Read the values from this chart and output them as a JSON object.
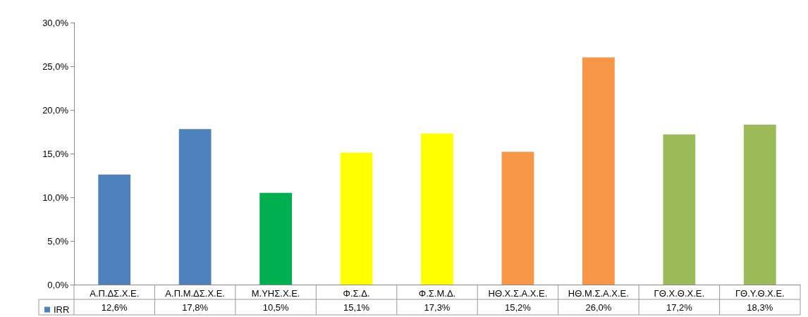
{
  "chart_data": {
    "type": "bar",
    "categories": [
      "Α.Π.ΔΣ.Χ.Ε.",
      "Α.Π.Μ.ΔΣ.Χ.Ε.",
      "Μ.ΥΗΣ.Χ.Ε.",
      "Φ.Σ.Δ.",
      "Φ.Σ.Μ.Δ.",
      "ΗΘ.Χ.Σ.Α.Χ.Ε.",
      "ΗΘ.Μ.Σ.Α.Χ.Ε.",
      "ΓΘ.Χ.Θ.Χ.Ε.",
      "ΓΘ.Υ.Θ.Χ.Ε."
    ],
    "series": [
      {
        "name": "IRR",
        "color": "#4f81bd",
        "values": [
          12.6,
          17.8,
          10.5,
          15.1,
          17.3,
          15.2,
          26.0,
          17.2,
          18.3
        ],
        "colors": [
          "#4f81bd",
          "#4f81bd",
          "#00b050",
          "#ffff00",
          "#ffff00",
          "#f79646",
          "#f79646",
          "#9bbb59",
          "#9bbb59"
        ],
        "value_labels": [
          "12,6%",
          "17,8%",
          "10,5%",
          "15,1%",
          "17,3%",
          "15,2%",
          "26,0%",
          "17,2%",
          "18,3%"
        ]
      }
    ],
    "ylim": [
      0,
      30
    ],
    "yticks": [
      {
        "value": 0,
        "label": "0,0%"
      },
      {
        "value": 5,
        "label": "5,0%"
      },
      {
        "value": 10,
        "label": "10,0%"
      },
      {
        "value": 15,
        "label": "15,0%"
      },
      {
        "value": 20,
        "label": "20,0%"
      },
      {
        "value": 25,
        "label": "25,0%"
      },
      {
        "value": 30,
        "label": "30,0%"
      }
    ],
    "grid": false,
    "legend": "bottom left"
  }
}
